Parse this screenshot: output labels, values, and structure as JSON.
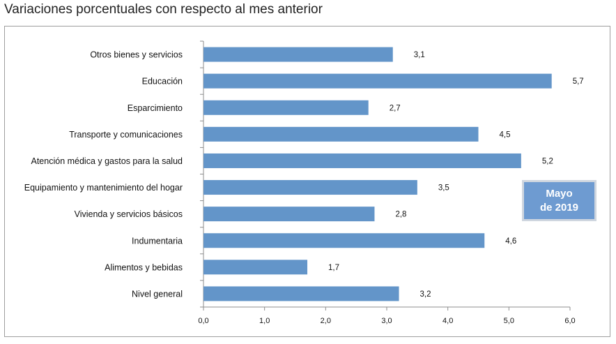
{
  "title": "Variaciones porcentuales con respecto al mes anterior",
  "badge": {
    "line1": "Mayo",
    "line2": "de 2019"
  },
  "bar_color": "#6395c9",
  "chart_data": {
    "type": "bar",
    "orientation": "horizontal",
    "categories": [
      "Otros bienes y servicios",
      "Educación",
      "Esparcimiento",
      "Transporte y comunicaciones",
      "Atención médica y gastos para la salud",
      "Equipamiento y  mantenimiento del hogar",
      "Vivienda y servicios básicos",
      "Indumentaria",
      "Alimentos y bebidas",
      "Nivel  general"
    ],
    "values": [
      3.1,
      5.7,
      2.7,
      4.5,
      5.2,
      3.5,
      2.8,
      4.6,
      1.7,
      3.2
    ],
    "value_labels": [
      "3,1",
      "5,7",
      "2,7",
      "4,5",
      "5,2",
      "3,5",
      "2,8",
      "4,6",
      "1,7",
      "3,2"
    ],
    "xlim": [
      0,
      6
    ],
    "xticks": [
      "0,0",
      "1,0",
      "2,0",
      "3,0",
      "4,0",
      "5,0",
      "6,0"
    ],
    "grid": false,
    "legend": "none"
  }
}
